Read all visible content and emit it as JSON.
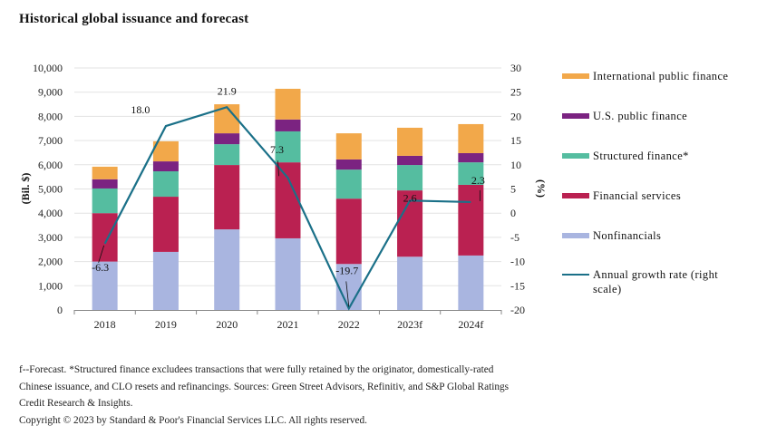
{
  "title": "Historical global issuance and forecast",
  "chart_data": {
    "type": "bar",
    "stacked": true,
    "title": "Historical global issuance and forecast",
    "categories": [
      "2018",
      "2019",
      "2020",
      "2021",
      "2022",
      "2023f",
      "2024f"
    ],
    "ylabel": "(Bil. $)",
    "y2label": "(%)",
    "ylim": [
      0,
      10000
    ],
    "y2lim": [
      -20,
      30
    ],
    "yticks": [
      "0",
      "1,000",
      "2,000",
      "3,000",
      "4,000",
      "5,000",
      "6,000",
      "7,000",
      "8,000",
      "9,000",
      "10,000"
    ],
    "y2ticks": [
      "-20",
      "-15",
      "-10",
      "-5",
      "0",
      "5",
      "10",
      "15",
      "20",
      "25",
      "30"
    ],
    "grid": true,
    "legend_position": "right",
    "series": [
      {
        "name": "Nonfinancials",
        "color": "#A9B5E0",
        "values": [
          2000,
          2400,
          3330,
          2960,
          1900,
          2200,
          2250
        ]
      },
      {
        "name": "Financial services",
        "color": "#BA2151",
        "values": [
          2000,
          2280,
          2660,
          3140,
          2700,
          2740,
          2920
        ]
      },
      {
        "name": "Structured finance*",
        "color": "#55BDA0",
        "values": [
          1020,
          1050,
          860,
          1280,
          1200,
          1050,
          930
        ]
      },
      {
        "name": "U.S. public finance",
        "color": "#7B2381",
        "values": [
          380,
          410,
          450,
          490,
          420,
          380,
          380
        ]
      },
      {
        "name": "International public finance",
        "color": "#F2A84A",
        "values": [
          520,
          830,
          1200,
          1270,
          1080,
          1160,
          1200
        ]
      }
    ],
    "line_series": {
      "name": "Annual growth rate (right scale)",
      "color": "#1A7088",
      "axis": "right",
      "values": [
        -6.3,
        18.0,
        21.9,
        7.3,
        -19.7,
        2.6,
        2.3
      ],
      "labels": [
        "-6.3",
        "18.0",
        "21.9",
        "7.3",
        "-19.7",
        "2.6",
        "2.3"
      ]
    }
  },
  "legend": [
    {
      "label": "International public finance",
      "color": "#F2A84A",
      "kind": "box"
    },
    {
      "label": "U.S. public finance",
      "color": "#7B2381",
      "kind": "box"
    },
    {
      "label": "Structured finance*",
      "color": "#55BDA0",
      "kind": "box"
    },
    {
      "label": "Financial services",
      "color": "#BA2151",
      "kind": "box"
    },
    {
      "label": "Nonfinancials",
      "color": "#A9B5E0",
      "kind": "box"
    },
    {
      "label": "Annual growth rate (right scale)",
      "color": "#1A7088",
      "kind": "line"
    }
  ],
  "footnote": {
    "line1": "f--Forecast. *Structured finance excludees transactions that were fully retained by the originator, domestically-rated",
    "line2": "Chinese issuance, and CLO resets and refinancings. Sources: Green Street Advisors, Refinitiv, and S&P Global Ratings",
    "line3": "Credit Research & Insights.",
    "copyright": "Copyright © 2023 by Standard & Poor's Financial Services LLC. All rights reserved."
  }
}
